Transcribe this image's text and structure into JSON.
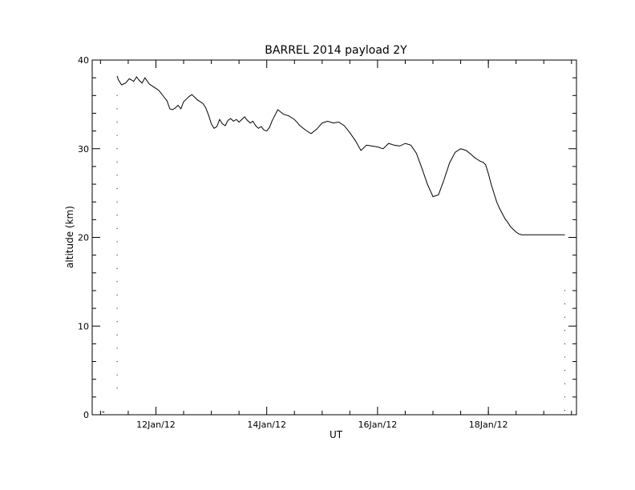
{
  "chart_data": {
    "type": "line",
    "title": "BARREL 2014 payload 2Y",
    "xlabel": "UT",
    "ylabel": "altitude (km)",
    "ylim": [
      0,
      40
    ],
    "xlim_days": [
      10.75,
      19.49
    ],
    "y_ticks": [
      "0",
      "10",
      "20",
      "30",
      "40"
    ],
    "x_ticks": [
      {
        "day": 11.9,
        "label": "12Jan/12"
      },
      {
        "day": 13.9,
        "label": "14Jan/12"
      },
      {
        "day": 15.9,
        "label": "16Jan/12"
      },
      {
        "day": 17.9,
        "label": "18Jan/12"
      }
    ],
    "grid": false,
    "line_color": "#000000",
    "series": [
      {
        "x_days": [
          11.2,
          11.22,
          11.28,
          11.35,
          11.42,
          11.5,
          11.55,
          11.6,
          11.65,
          11.7,
          11.78,
          11.85,
          11.9,
          11.95,
          12.0,
          12.05,
          12.1,
          12.15,
          12.2,
          12.25,
          12.3,
          12.35,
          12.4,
          12.45,
          12.5,
          12.55,
          12.6,
          12.65,
          12.7,
          12.75,
          12.8,
          12.85,
          12.9,
          12.95,
          13.0,
          13.05,
          13.1,
          13.15,
          13.2,
          13.25,
          13.3,
          13.35,
          13.4,
          13.45,
          13.5,
          13.55,
          13.6,
          13.65,
          13.7,
          13.75,
          13.8,
          13.85,
          13.9,
          13.95,
          14.0,
          14.1,
          14.2,
          14.3,
          14.4,
          14.5,
          14.6,
          14.7,
          14.8,
          14.9,
          15.0,
          15.1,
          15.2,
          15.3,
          15.4,
          15.5,
          15.6,
          15.7,
          15.8,
          15.9,
          16.0,
          16.1,
          16.2,
          16.3,
          16.4,
          16.5,
          16.6,
          16.7,
          16.8,
          16.9,
          17.0,
          17.1,
          17.2,
          17.3,
          17.4,
          17.5,
          17.6,
          17.65,
          17.7,
          17.75,
          17.8,
          17.85,
          17.9,
          17.95,
          18.0,
          18.05,
          18.1,
          18.15,
          18.2,
          18.25,
          18.3,
          18.35,
          18.4,
          18.45,
          18.5,
          18.55,
          18.6,
          18.65,
          18.7,
          18.75,
          18.8,
          18.85,
          18.9,
          18.95,
          19.0,
          19.05,
          19.1,
          19.15,
          19.2,
          19.25,
          19.28
        ],
        "y_km": [
          38.2,
          37.8,
          37.2,
          37.4,
          37.9,
          37.6,
          38.1,
          37.7,
          37.4,
          38.0,
          37.3,
          37.0,
          36.8,
          36.6,
          36.2,
          35.8,
          35.4,
          34.5,
          34.4,
          34.6,
          34.9,
          34.5,
          35.3,
          35.6,
          35.9,
          36.1,
          35.8,
          35.5,
          35.3,
          35.1,
          34.6,
          33.8,
          32.8,
          32.3,
          32.5,
          33.3,
          32.8,
          32.6,
          33.2,
          33.4,
          33.1,
          33.3,
          33.0,
          33.3,
          33.6,
          33.2,
          32.9,
          33.1,
          32.6,
          32.3,
          32.5,
          32.1,
          32.0,
          32.4,
          33.2,
          34.4,
          33.9,
          33.7,
          33.3,
          32.6,
          32.1,
          31.7,
          32.2,
          32.9,
          33.1,
          32.9,
          33.0,
          32.6,
          31.8,
          30.9,
          29.8,
          30.4,
          30.3,
          30.2,
          30.0,
          30.6,
          30.4,
          30.3,
          30.6,
          30.4,
          29.5,
          27.8,
          26.0,
          24.6,
          24.8,
          26.5,
          28.4,
          29.6,
          30.0,
          29.8,
          29.3,
          29.0,
          28.8,
          28.6,
          28.5,
          28.2,
          27.2,
          26.0,
          25.0,
          24.0,
          23.3,
          22.7,
          22.1,
          21.7,
          21.2,
          20.9,
          20.6,
          20.4,
          20.3,
          20.3,
          20.3,
          20.3,
          20.3,
          20.3,
          20.3,
          20.3,
          20.3,
          20.3,
          20.3,
          20.3,
          20.3,
          20.3,
          20.3,
          20.3,
          20.3
        ],
        "x_days_note": ""
      }
    ]
  }
}
